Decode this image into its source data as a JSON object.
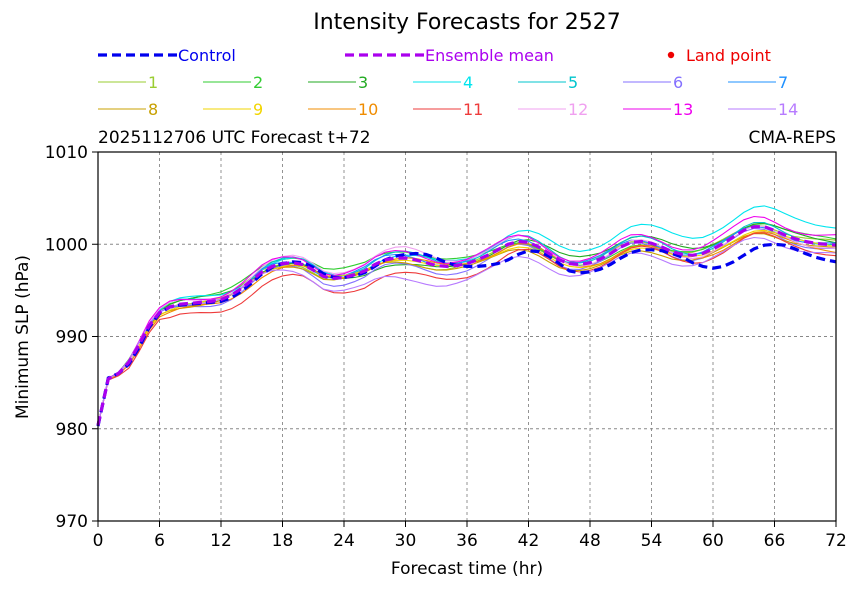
{
  "chart_data": {
    "type": "line",
    "title": "Intensity Forecasts for 2527",
    "subtitle_left": "2025112706 UTC Forecast t+72",
    "subtitle_right": "CMA-REPS",
    "xlabel": "Forecast time (hr)",
    "ylabel": "Minimum SLP (hPa)",
    "xlim": [
      0,
      72
    ],
    "ylim": [
      970,
      1010
    ],
    "xticks": [
      "0",
      "6",
      "12",
      "18",
      "24",
      "30",
      "36",
      "42",
      "48",
      "54",
      "60",
      "66",
      "72"
    ],
    "yticks": [
      "970",
      "980",
      "990",
      "1000",
      "1010"
    ],
    "grid": true,
    "legend_placement": "top",
    "x": [
      0,
      1,
      2,
      3,
      4,
      5,
      6,
      7,
      8,
      9,
      10,
      11,
      12,
      13,
      14,
      15,
      16,
      17,
      18,
      19,
      20,
      21,
      22,
      23,
      24,
      25,
      26,
      27,
      28,
      29,
      30,
      31,
      32,
      33,
      34,
      35,
      36,
      37,
      38,
      39,
      40,
      41,
      42,
      43,
      44,
      45,
      46,
      47,
      48,
      49,
      50,
      51,
      52,
      53,
      54,
      55,
      56,
      57,
      58,
      59,
      60,
      61,
      62,
      63,
      64,
      65,
      66,
      67,
      68,
      69,
      70,
      71,
      72
    ],
    "control": {
      "name": "Control",
      "color": "#0000ee",
      "values": [
        980.3,
        985.5,
        986.0,
        987.0,
        988.8,
        991.0,
        992.5,
        993.2,
        993.4,
        993.5,
        993.6,
        993.7,
        993.8,
        994.2,
        994.9,
        995.8,
        996.8,
        997.5,
        997.9,
        998.1,
        998.0,
        997.5,
        996.8,
        996.4,
        996.4,
        996.6,
        996.9,
        997.6,
        998.3,
        998.7,
        998.9,
        999.0,
        998.9,
        998.5,
        998.0,
        997.7,
        997.6,
        997.6,
        997.7,
        997.9,
        998.3,
        998.9,
        999.3,
        999.2,
        998.7,
        997.9,
        997.1,
        996.9,
        997.0,
        997.3,
        997.8,
        998.5,
        999.1,
        999.4,
        999.4,
        999.3,
        999.0,
        998.6,
        998.0,
        997.6,
        997.4,
        997.6,
        998.1,
        998.8,
        999.5,
        999.9,
        1000.0,
        999.9,
        999.5,
        999.0,
        998.6,
        998.3,
        998.1
      ]
    },
    "ensemble_mean": {
      "name": "Ensemble mean",
      "color": "#aa00ee",
      "values": [
        980.4,
        985.4,
        986.0,
        987.2,
        989.1,
        991.2,
        992.6,
        993.2,
        993.5,
        993.6,
        993.7,
        993.8,
        994.0,
        994.5,
        995.2,
        996.1,
        997.0,
        997.6,
        997.9,
        998.0,
        997.8,
        997.2,
        996.5,
        996.3,
        996.4,
        996.7,
        997.1,
        997.8,
        998.3,
        998.5,
        998.5,
        998.3,
        998.0,
        997.7,
        997.6,
        997.7,
        997.9,
        998.3,
        998.8,
        999.4,
        1000.0,
        1000.3,
        1000.2,
        999.7,
        999.0,
        998.3,
        997.9,
        997.8,
        998.0,
        998.4,
        999.0,
        999.7,
        1000.2,
        1000.3,
        1000.1,
        999.7,
        999.2,
        998.9,
        998.8,
        999.0,
        999.5,
        1000.1,
        1000.8,
        1001.5,
        1001.9,
        1001.9,
        1001.5,
        1001.0,
        1000.6,
        1000.3,
        1000.1,
        1000.0,
        999.9
      ]
    },
    "land_point_label": "Land point",
    "land_point_color": "#ee0000",
    "members": [
      {
        "name": "1",
        "color": "#9acd32",
        "offset": [
          0.2,
          -0.4,
          0.1,
          0.3
        ]
      },
      {
        "name": "2",
        "color": "#32cd32",
        "offset": [
          0.6,
          0.9,
          -0.4,
          0.6
        ]
      },
      {
        "name": "3",
        "color": "#22aa22",
        "offset": [
          0.4,
          -0.6,
          0.8,
          0.4
        ]
      },
      {
        "name": "4",
        "color": "#00e5ee",
        "offset": [
          0.5,
          0.2,
          1.6,
          2.1
        ]
      },
      {
        "name": "5",
        "color": "#00c5cd",
        "offset": [
          0.3,
          0.5,
          0.4,
          0.2
        ]
      },
      {
        "name": "6",
        "color": "#8470ff",
        "offset": [
          -0.3,
          -0.8,
          -0.3,
          -0.4
        ]
      },
      {
        "name": "7",
        "color": "#1e90ff",
        "offset": [
          0.0,
          0.3,
          0.2,
          0.0
        ]
      },
      {
        "name": "8",
        "color": "#c8a000",
        "offset": [
          -0.2,
          -0.3,
          -0.9,
          -0.5
        ]
      },
      {
        "name": "9",
        "color": "#f2d500",
        "offset": [
          -0.1,
          0.0,
          -0.6,
          -0.2
        ]
      },
      {
        "name": "10",
        "color": "#f08c00",
        "offset": [
          -0.5,
          0.1,
          -0.3,
          -0.6
        ]
      },
      {
        "name": "11",
        "color": "#ee3b3b",
        "offset": [
          -1.3,
          -1.7,
          -0.6,
          -0.9
        ]
      },
      {
        "name": "12",
        "color": "#f0a0f0",
        "offset": [
          0.3,
          1.0,
          0.0,
          -0.2
        ]
      },
      {
        "name": "13",
        "color": "#ee00ee",
        "offset": [
          0.5,
          0.6,
          0.5,
          1.0
        ]
      },
      {
        "name": "14",
        "color": "#b77bff",
        "offset": [
          0.1,
          -2.2,
          -1.2,
          -1.1
        ]
      }
    ]
  }
}
